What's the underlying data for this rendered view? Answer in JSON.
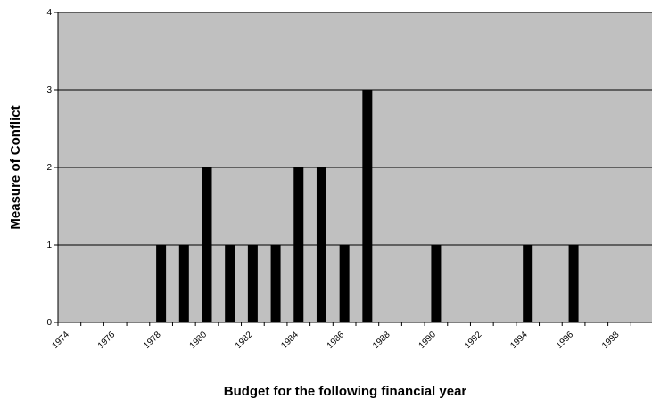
{
  "chart_data": {
    "type": "bar",
    "title": "",
    "xlabel": "Budget for the following financial year",
    "ylabel": "Measure of Conflict",
    "ylim": [
      0,
      4
    ],
    "yticks": [
      "0",
      "1",
      "2",
      "3",
      "4"
    ],
    "grid": "horizontal",
    "legend": "none",
    "xticks": [
      "1974",
      "1976",
      "1978",
      "1980",
      "1982",
      "1984",
      "1986",
      "1988",
      "1990",
      "1992",
      "1994",
      "1996",
      "1998"
    ],
    "categories": [
      "1974",
      "1975",
      "1976",
      "1977",
      "1978",
      "1979",
      "1980",
      "1981",
      "1982",
      "1983",
      "1984",
      "1985",
      "1986",
      "1987",
      "1988",
      "1989",
      "1990",
      "1991",
      "1992",
      "1993",
      "1994",
      "1995",
      "1996",
      "1997",
      "1998",
      "1999"
    ],
    "values": [
      0,
      0,
      0,
      0,
      1,
      1,
      2,
      1,
      1,
      1,
      2,
      2,
      1,
      3,
      0,
      0,
      1,
      0,
      0,
      0,
      1,
      0,
      1,
      0,
      0,
      0
    ],
    "colors": {
      "plot_background": "#c0c0c0",
      "bar": "#000000",
      "gridline": "#000000"
    }
  }
}
